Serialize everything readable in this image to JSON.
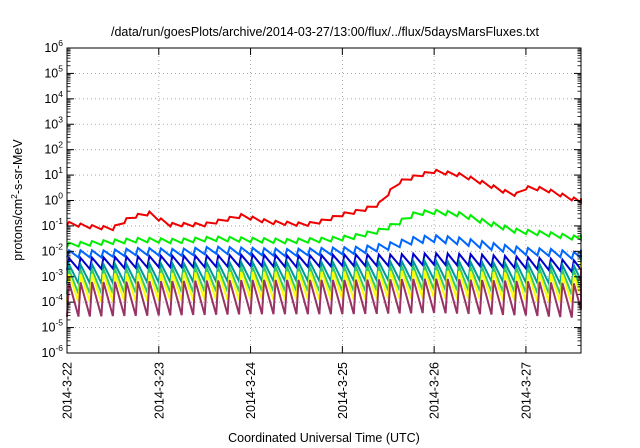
{
  "chart_data": {
    "type": "line",
    "title": "/data/run/goesPlots/archive/2014-03-27/13:00/flux/../flux/5daysMarsFluxes.txt",
    "xlabel": "Coordinated Universal Time (UTC)",
    "ylabel": {
      "before": "protons/cm",
      "sup": "2",
      "after": "-s-sr-MeV"
    },
    "yscale": "log",
    "grid": true,
    "legend": "none",
    "xlim": [
      0,
      5.6
    ],
    "ylim_exp": [
      -6,
      6
    ],
    "x_unit": "days from 2014-3-22 00:00 UTC",
    "y_ticks": [
      {
        "base": "10",
        "exp": "6",
        "value": 6
      },
      {
        "base": "10",
        "exp": "5",
        "value": 5
      },
      {
        "base": "10",
        "exp": "4",
        "value": 4
      },
      {
        "base": "10",
        "exp": "3",
        "value": 3
      },
      {
        "base": "10",
        "exp": "2",
        "value": 2
      },
      {
        "base": "10",
        "exp": "1",
        "value": 1
      },
      {
        "base": "10",
        "exp": "0",
        "value": 0
      },
      {
        "base": "10",
        "exp": "-1",
        "value": -1
      },
      {
        "base": "10",
        "exp": "-2",
        "value": -2
      },
      {
        "base": "10",
        "exp": "-3",
        "value": -3
      },
      {
        "base": "10",
        "exp": "-4",
        "value": -4
      },
      {
        "base": "10",
        "exp": "-5",
        "value": -5
      },
      {
        "base": "10",
        "exp": "-6",
        "value": -6
      }
    ],
    "x_ticks": [
      {
        "label": "2014-3-22",
        "value": 0
      },
      {
        "label": "2014-3-23",
        "value": 1
      },
      {
        "label": "2014-3-24",
        "value": 2
      },
      {
        "label": "2014-3-25",
        "value": 3
      },
      {
        "label": "2014-3-26",
        "value": 4
      },
      {
        "label": "2014-3-27",
        "value": 5
      }
    ],
    "series": [
      {
        "color": "#ee0000",
        "sawtooth_depth": 0.14,
        "points": [
          [
            0,
            -0.9
          ],
          [
            0.3,
            -1.05
          ],
          [
            0.5,
            -1.1
          ],
          [
            0.7,
            -0.65
          ],
          [
            0.9,
            -0.5
          ],
          [
            1.1,
            -0.95
          ],
          [
            1.5,
            -0.95
          ],
          [
            1.9,
            -0.6
          ],
          [
            2.2,
            -0.85
          ],
          [
            2.6,
            -0.95
          ],
          [
            2.8,
            -0.8
          ],
          [
            3.0,
            -0.55
          ],
          [
            3.2,
            -0.4
          ],
          [
            3.4,
            -0.15
          ],
          [
            3.6,
            0.7
          ],
          [
            3.8,
            0.95
          ],
          [
            4.0,
            1.15
          ],
          [
            4.3,
            1.0
          ],
          [
            4.6,
            0.6
          ],
          [
            4.8,
            0.3
          ],
          [
            4.95,
            0.2
          ],
          [
            5.0,
            0.5
          ],
          [
            5.2,
            0.45
          ],
          [
            5.4,
            0.2
          ],
          [
            5.6,
            -0.05
          ]
        ]
      },
      {
        "color": "#00ee00",
        "sawtooth_depth": 0.18,
        "points": [
          [
            0,
            -1.75
          ],
          [
            0.4,
            -1.65
          ],
          [
            0.8,
            -1.55
          ],
          [
            1.2,
            -1.6
          ],
          [
            1.6,
            -1.5
          ],
          [
            2.0,
            -1.55
          ],
          [
            2.4,
            -1.6
          ],
          [
            2.8,
            -1.55
          ],
          [
            3.1,
            -1.45
          ],
          [
            3.4,
            -1.2
          ],
          [
            3.6,
            -0.9
          ],
          [
            3.8,
            -0.5
          ],
          [
            4.0,
            -0.45
          ],
          [
            4.3,
            -0.55
          ],
          [
            4.6,
            -0.9
          ],
          [
            4.9,
            -1.2
          ],
          [
            5.2,
            -1.3
          ],
          [
            5.6,
            -1.5
          ]
        ]
      },
      {
        "color": "#0066ff",
        "sawtooth_depth": 0.28,
        "points": [
          [
            0,
            -2.1
          ],
          [
            0.4,
            -2.1
          ],
          [
            0.8,
            -2.0
          ],
          [
            1.2,
            -2.05
          ],
          [
            1.6,
            -1.95
          ],
          [
            2.0,
            -2.0
          ],
          [
            2.4,
            -2.05
          ],
          [
            2.8,
            -2.0
          ],
          [
            3.2,
            -1.95
          ],
          [
            3.5,
            -1.8
          ],
          [
            3.8,
            -1.55
          ],
          [
            4.0,
            -1.5
          ],
          [
            4.3,
            -1.6
          ],
          [
            4.7,
            -1.85
          ],
          [
            5.0,
            -2.0
          ],
          [
            5.3,
            -2.05
          ],
          [
            5.6,
            -2.2
          ]
        ]
      },
      {
        "color": "#0000cc",
        "sawtooth_depth": 0.45,
        "points": [
          [
            0,
            -2.5
          ],
          [
            0.5,
            -2.45
          ],
          [
            1.0,
            -2.4
          ],
          [
            1.5,
            -2.4
          ],
          [
            2.0,
            -2.35
          ],
          [
            2.5,
            -2.4
          ],
          [
            3.0,
            -2.35
          ],
          [
            3.5,
            -2.35
          ],
          [
            4.0,
            -2.3
          ],
          [
            4.5,
            -2.35
          ],
          [
            5.0,
            -2.45
          ],
          [
            5.6,
            -2.6
          ]
        ]
      },
      {
        "color": "#009999",
        "sawtooth_depth": 0.75,
        "points": [
          [
            0,
            -2.9
          ],
          [
            1.0,
            -2.85
          ],
          [
            2.0,
            -2.8
          ],
          [
            3.0,
            -2.8
          ],
          [
            4.0,
            -2.75
          ],
          [
            5.0,
            -2.85
          ],
          [
            5.6,
            -2.95
          ]
        ]
      },
      {
        "color": "#33cc66",
        "sawtooth_depth": 0.95,
        "points": [
          [
            0,
            -3.2
          ],
          [
            1.0,
            -3.15
          ],
          [
            2.0,
            -3.1
          ],
          [
            3.0,
            -3.1
          ],
          [
            4.0,
            -3.05
          ],
          [
            5.0,
            -3.15
          ],
          [
            5.6,
            -3.25
          ]
        ]
      },
      {
        "color": "#ffff00",
        "sawtooth_depth": 1.1,
        "points": [
          [
            0,
            -3.45
          ],
          [
            1.0,
            -3.4
          ],
          [
            2.0,
            -3.35
          ],
          [
            3.0,
            -3.35
          ],
          [
            4.0,
            -3.3
          ],
          [
            5.0,
            -3.4
          ],
          [
            5.6,
            -3.5
          ]
        ]
      },
      {
        "color": "#993366",
        "sawtooth_depth": 1.35,
        "points": [
          [
            0,
            -3.9
          ],
          [
            1.0,
            -3.85
          ],
          [
            2.0,
            -3.8
          ],
          [
            3.0,
            -3.8
          ],
          [
            4.0,
            -3.75
          ],
          [
            5.0,
            -3.85
          ],
          [
            5.6,
            -3.95
          ]
        ]
      }
    ],
    "sawtooth_period": 0.125
  }
}
